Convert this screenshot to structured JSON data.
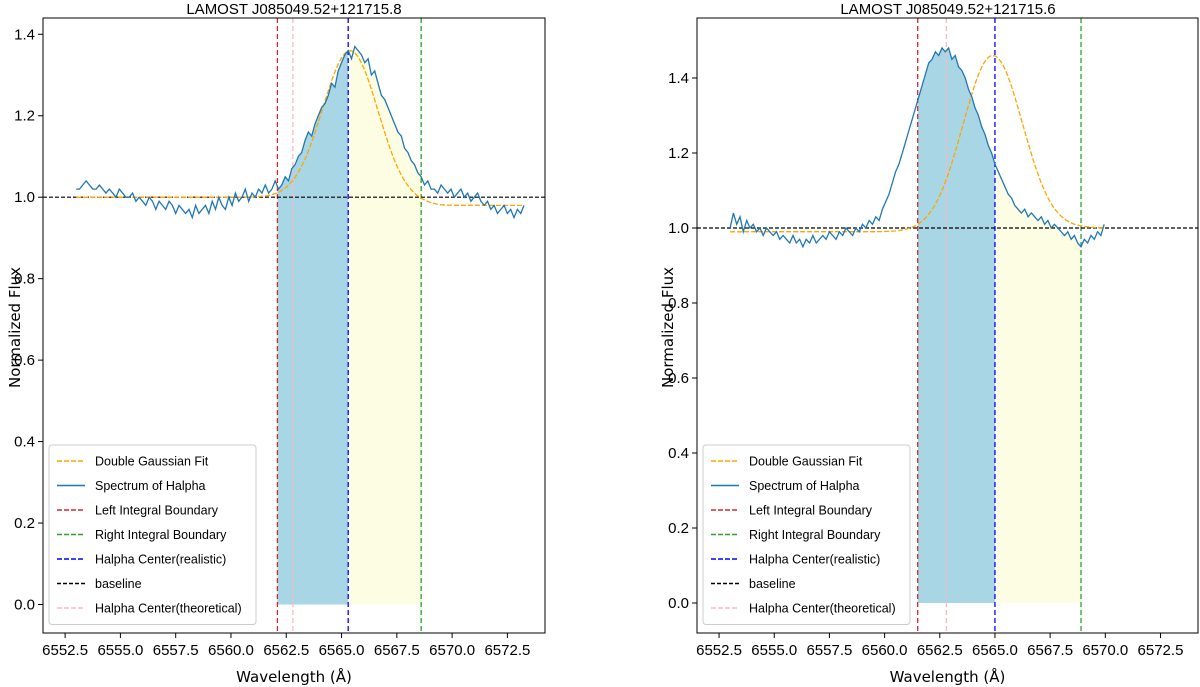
{
  "chart_data": [
    {
      "type": "line",
      "title": "LAMOST J085049.52+121715.8",
      "xlabel": "Wavelength (Å)",
      "ylabel": "Normalized Flux",
      "xlim": [
        6551.5,
        6574.2
      ],
      "ylim": [
        -0.07,
        1.44
      ],
      "xticks": [
        6552.5,
        6555.0,
        6557.5,
        6560.0,
        6562.5,
        6565.0,
        6567.5,
        6570.0,
        6572.5
      ],
      "xtick_labels": [
        "6552.5",
        "6555.0",
        "6557.5",
        "6560.0",
        "6562.5",
        "6565.0",
        "6567.5",
        "6570.0",
        "6572.5"
      ],
      "yticks": [
        0.0,
        0.2,
        0.4,
        0.6,
        0.8,
        1.0,
        1.2,
        1.4
      ],
      "ytick_labels": [
        "0.0",
        "0.2",
        "0.4",
        "0.6",
        "0.8",
        "1.0",
        "1.2",
        "1.4"
      ],
      "baseline": 1.0,
      "left_boundary": 6562.1,
      "right_boundary": 6568.6,
      "center_realistic": 6565.3,
      "center_theoretical": 6562.8,
      "gaussian": {
        "amp": 0.36,
        "mu": 6565.4,
        "sigma": 1.25,
        "base_left": 1.0,
        "base_right": 0.98
      },
      "spectrum": {
        "x_start": 6553.0,
        "x_step": 0.15,
        "flux": [
          1.02,
          1.02,
          1.03,
          1.04,
          1.03,
          1.02,
          1.02,
          1.03,
          1.02,
          1.01,
          1.02,
          1.01,
          1.0,
          1.02,
          1.01,
          1.0,
          1.0,
          1.01,
          0.99,
          1.0,
          0.99,
          0.98,
          1.0,
          0.99,
          0.97,
          0.99,
          0.98,
          0.97,
          0.99,
          0.98,
          0.96,
          0.98,
          0.97,
          0.96,
          0.97,
          0.95,
          0.98,
          0.96,
          0.97,
          0.98,
          0.96,
          0.99,
          0.97,
          1.0,
          0.98,
          0.97,
          1.0,
          0.98,
          1.01,
          0.99,
          1.0,
          1.02,
          0.99,
          1.01,
          1.0,
          1.02,
          1.01,
          1.03,
          1.01,
          1.02,
          1.04,
          1.02,
          1.03,
          1.05,
          1.04,
          1.07,
          1.08,
          1.1,
          1.11,
          1.14,
          1.16,
          1.15,
          1.18,
          1.2,
          1.22,
          1.23,
          1.25,
          1.28,
          1.27,
          1.31,
          1.33,
          1.35,
          1.36,
          1.34,
          1.37,
          1.36,
          1.35,
          1.33,
          1.34,
          1.3,
          1.31,
          1.28,
          1.25,
          1.24,
          1.22,
          1.2,
          1.18,
          1.16,
          1.15,
          1.12,
          1.11,
          1.09,
          1.08,
          1.06,
          1.05,
          1.03,
          1.04,
          1.02,
          1.02,
          1.01,
          1.03,
          1.02,
          1.01,
          1.02,
          1.0,
          1.01,
          1.02,
          1.0,
          1.01,
          0.99,
          1.0,
          1.01,
          0.99,
          0.98,
          0.99,
          0.97,
          0.98,
          0.96,
          0.97,
          0.98,
          0.96,
          0.97,
          0.95,
          0.97,
          0.96,
          0.98
        ]
      },
      "legend": [
        "Double Gaussian Fit",
        "Spectrum of Halpha",
        "Left Integral Boundary",
        "Right Integral Boundary",
        "Halpha Center(realistic)",
        "baseline",
        "Halpha Center(theoretical)"
      ],
      "legend_position": "lower-left"
    },
    {
      "type": "line",
      "title": "LAMOST J085049.52+121715.6",
      "xlabel": "Wavelength (Å)",
      "ylabel": "Normalized Flux",
      "xlim": [
        6551.5,
        6574.2
      ],
      "ylim": [
        -0.08,
        1.56
      ],
      "xticks": [
        6552.5,
        6555.0,
        6557.5,
        6560.0,
        6562.5,
        6565.0,
        6567.5,
        6570.0,
        6572.5
      ],
      "xtick_labels": [
        "6552.5",
        "6555.0",
        "6557.5",
        "6560.0",
        "6562.5",
        "6565.0",
        "6567.5",
        "6570.0",
        "6572.5"
      ],
      "yticks": [
        0.0,
        0.2,
        0.4,
        0.6,
        0.8,
        1.0,
        1.2,
        1.4
      ],
      "ytick_labels": [
        "0.0",
        "0.2",
        "0.4",
        "0.6",
        "0.8",
        "1.0",
        "1.2",
        "1.4"
      ],
      "baseline": 1.0,
      "left_boundary": 6561.5,
      "right_boundary": 6568.9,
      "center_realistic": 6565.0,
      "center_theoretical": 6562.8,
      "gaussian": {
        "amp": 0.47,
        "mu": 6564.9,
        "sigma": 1.35,
        "base_left": 0.99,
        "base_right": 1.0
      },
      "spectrum": {
        "x_start": 6553.0,
        "x_step": 0.15,
        "flux": [
          1.0,
          1.04,
          1.01,
          1.03,
          0.99,
          1.02,
          1.0,
          1.01,
          0.99,
          1.0,
          0.98,
          1.0,
          0.99,
          0.98,
          0.99,
          0.97,
          0.98,
          0.97,
          0.96,
          0.98,
          0.96,
          0.97,
          0.95,
          0.97,
          0.96,
          0.98,
          0.96,
          0.97,
          0.98,
          0.97,
          0.99,
          0.98,
          0.97,
          0.99,
          0.98,
          1.0,
          0.99,
          0.98,
          1.0,
          0.99,
          1.01,
          1.0,
          1.02,
          1.01,
          1.03,
          1.02,
          1.05,
          1.07,
          1.09,
          1.12,
          1.15,
          1.17,
          1.2,
          1.23,
          1.26,
          1.29,
          1.32,
          1.35,
          1.38,
          1.41,
          1.44,
          1.45,
          1.47,
          1.46,
          1.48,
          1.47,
          1.48,
          1.45,
          1.46,
          1.43,
          1.42,
          1.4,
          1.37,
          1.35,
          1.32,
          1.3,
          1.27,
          1.25,
          1.22,
          1.2,
          1.17,
          1.15,
          1.13,
          1.11,
          1.09,
          1.08,
          1.06,
          1.05,
          1.04,
          1.05,
          1.03,
          1.04,
          1.03,
          1.02,
          1.03,
          1.01,
          1.02,
          1.0,
          1.01,
          1.0,
          0.99,
          0.98,
          0.99,
          0.97,
          0.98,
          0.96,
          0.95,
          0.97,
          0.96,
          0.98,
          0.97,
          0.99,
          0.98,
          1.01
        ]
      },
      "legend": [
        "Double Gaussian Fit",
        "Spectrum of Halpha",
        "Left Integral Boundary",
        "Right Integral Boundary",
        "Halpha Center(realistic)",
        "baseline",
        "Halpha Center(theoretical)"
      ],
      "legend_position": "lower-left"
    }
  ],
  "colors": {
    "spectrum": "#1f77b4",
    "fit": "#ffa500",
    "left_boundary": "#d62728",
    "right_boundary": "#2ca02c",
    "center_realistic": "#0000ff",
    "baseline": "#000000",
    "center_theoretical": "#ffb6c1",
    "fill_left": "#a9d6e5",
    "fill_right": "#fdfde3"
  }
}
